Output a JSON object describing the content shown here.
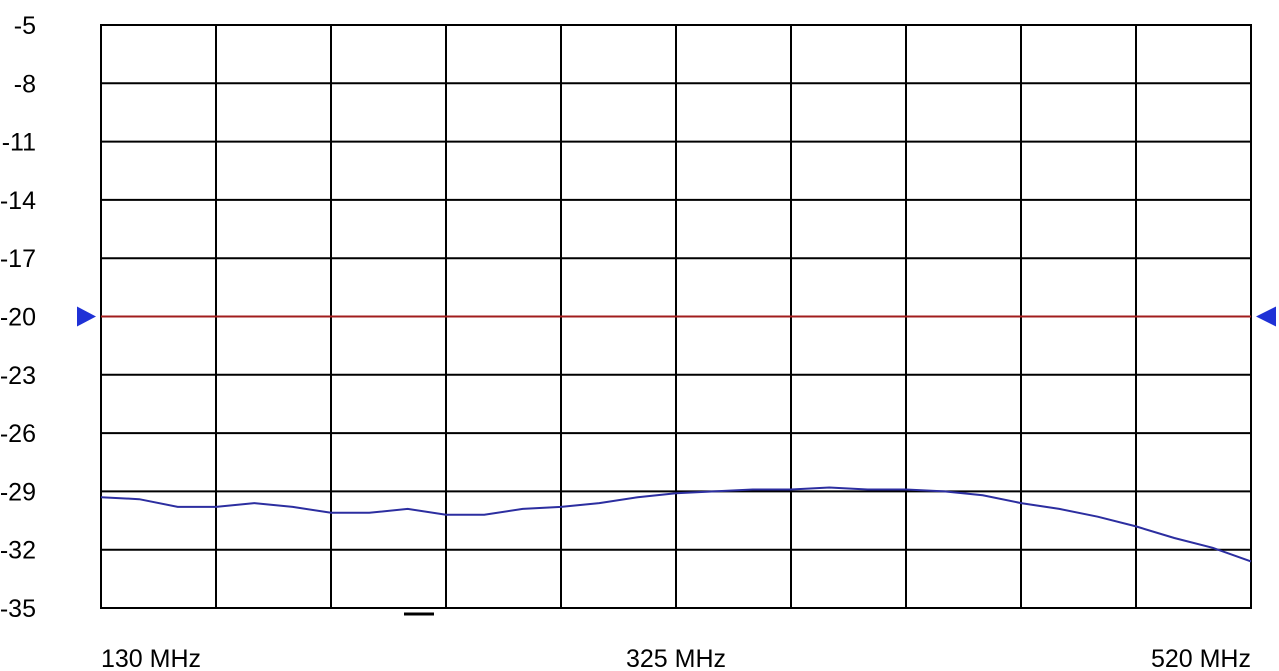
{
  "chart_data": {
    "type": "line",
    "title": "",
    "xlabel": "",
    "ylabel": "",
    "xlim": [
      130,
      520
    ],
    "ylim": [
      -35,
      -5
    ],
    "grid": true,
    "y_ticks": [
      {
        "value": -5,
        "label": "-5"
      },
      {
        "value": -8,
        "label": "-8"
      },
      {
        "value": -11,
        "label": "-11"
      },
      {
        "value": -14,
        "label": "-14"
      },
      {
        "value": -17,
        "label": "-17"
      },
      {
        "value": -20,
        "label": "-20"
      },
      {
        "value": -23,
        "label": "-23"
      },
      {
        "value": -26,
        "label": "-26"
      },
      {
        "value": -29,
        "label": "-29"
      },
      {
        "value": -32,
        "label": "-32"
      },
      {
        "value": -35,
        "label": "-35"
      }
    ],
    "x_ticks": [
      {
        "value": 130,
        "label": "130 MHz"
      },
      {
        "value": 325,
        "label": "325 MHz"
      },
      {
        "value": 520,
        "label": "520 MHz"
      }
    ],
    "x_divisions": 10,
    "reference_line": {
      "value": -20,
      "color": "#a11d1d"
    },
    "marker_color": "#1f31d6",
    "series": [
      {
        "color": "#2c2ea0",
        "x": [
          130,
          143,
          156,
          169,
          182,
          195,
          208,
          221,
          234,
          247,
          260,
          273,
          286,
          299,
          312,
          325,
          338,
          351,
          364,
          377,
          390,
          403,
          416,
          429,
          442,
          455,
          468,
          481,
          494,
          507,
          520
        ],
        "y": [
          -29.3,
          -29.4,
          -29.8,
          -29.8,
          -29.6,
          -29.8,
          -30.1,
          -30.1,
          -29.9,
          -30.2,
          -30.2,
          -29.9,
          -29.8,
          -29.6,
          -29.3,
          -29.1,
          -29.0,
          -28.9,
          -28.9,
          -28.8,
          -28.9,
          -28.9,
          -29.0,
          -29.2,
          -29.6,
          -29.9,
          -30.3,
          -30.8,
          -31.4,
          -31.9,
          -32.6
        ]
      }
    ]
  }
}
